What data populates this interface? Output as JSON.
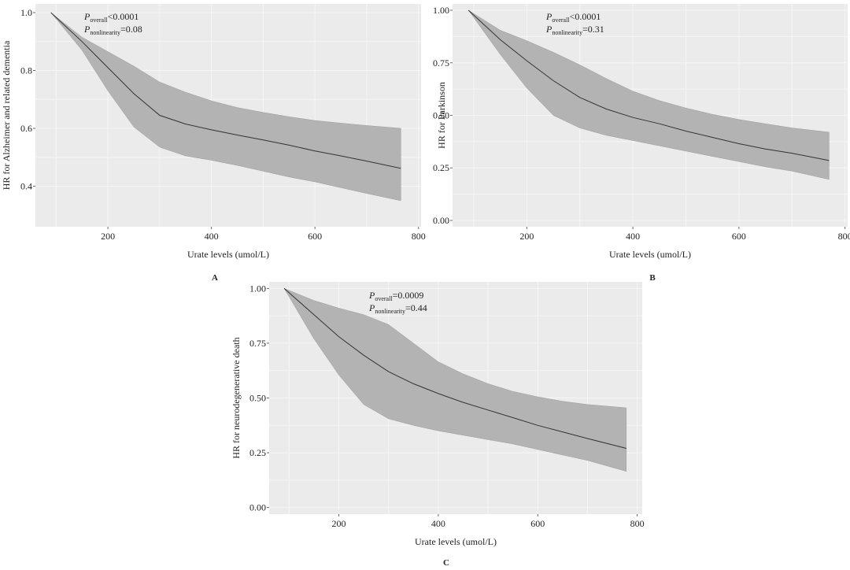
{
  "chart_data": [
    {
      "panel": "A",
      "type": "line",
      "xlabel": "Urate levels (umol/L)",
      "ylabel": "HR for Alzheimer and related dementia",
      "xlim": [
        60,
        805
      ],
      "ylim": [
        0.26,
        1.03
      ],
      "xticks": [
        200,
        400,
        600,
        800
      ],
      "xtick_labels": [
        "200",
        "400",
        "600",
        "800"
      ],
      "yticks": [
        0.4,
        0.6,
        0.8,
        1.0
      ],
      "ytick_labels": [
        "0.4",
        "0.6",
        "0.8",
        "1.0"
      ],
      "p_overall": "<0.0001",
      "p_nonlinearity": "=0.08",
      "series": [
        {
          "x": [
            90,
            150,
            200,
            250,
            300,
            350,
            400,
            450,
            500,
            550,
            600,
            650,
            700,
            766
          ],
          "y": [
            1.0,
            0.9,
            0.81,
            0.72,
            0.645,
            0.615,
            0.595,
            0.577,
            0.56,
            0.542,
            0.522,
            0.505,
            0.487,
            0.462
          ],
          "lower": [
            1.0,
            0.87,
            0.73,
            0.605,
            0.535,
            0.505,
            0.49,
            0.472,
            0.452,
            0.432,
            0.415,
            0.395,
            0.375,
            0.35
          ],
          "upper": [
            1.0,
            0.915,
            0.865,
            0.815,
            0.76,
            0.725,
            0.695,
            0.672,
            0.655,
            0.64,
            0.627,
            0.618,
            0.61,
            0.6
          ]
        }
      ]
    },
    {
      "panel": "B",
      "type": "line",
      "xlabel": "Urate levels (umol/L)",
      "ylabel": "HR for Parkinson",
      "xlim": [
        60,
        805
      ],
      "ylim": [
        -0.03,
        1.03
      ],
      "xticks": [
        200,
        400,
        600,
        800
      ],
      "xtick_labels": [
        "200",
        "400",
        "600",
        "800"
      ],
      "yticks": [
        0.0,
        0.25,
        0.5,
        0.75,
        1.0
      ],
      "ytick_labels": [
        "0.00",
        "0.25",
        "0.50",
        "0.75",
        "1.00"
      ],
      "p_overall": "<0.0001",
      "p_nonlinearity": "=0.31",
      "series": [
        {
          "x": [
            90,
            150,
            200,
            250,
            300,
            350,
            400,
            450,
            500,
            550,
            600,
            650,
            700,
            770
          ],
          "y": [
            1.0,
            0.86,
            0.76,
            0.665,
            0.585,
            0.53,
            0.49,
            0.46,
            0.425,
            0.395,
            0.365,
            0.34,
            0.32,
            0.285
          ],
          "lower": [
            1.0,
            0.79,
            0.63,
            0.5,
            0.44,
            0.405,
            0.38,
            0.355,
            0.33,
            0.305,
            0.28,
            0.255,
            0.235,
            0.195
          ],
          "upper": [
            1.0,
            0.905,
            0.855,
            0.8,
            0.74,
            0.675,
            0.615,
            0.57,
            0.535,
            0.505,
            0.48,
            0.46,
            0.44,
            0.42
          ]
        }
      ]
    },
    {
      "panel": "C",
      "type": "line",
      "xlabel": "Urate levels (umol/L)",
      "ylabel": "HR for neurodegenerative death",
      "xlim": [
        60,
        810
      ],
      "ylim": [
        -0.03,
        1.03
      ],
      "xticks": [
        200,
        400,
        600,
        800
      ],
      "xtick_labels": [
        "200",
        "400",
        "600",
        "800"
      ],
      "yticks": [
        0.0,
        0.25,
        0.5,
        0.75,
        1.0
      ],
      "ytick_labels": [
        "0.00",
        "0.25",
        "0.50",
        "0.75",
        "1.00"
      ],
      "p_overall": "=0.0009",
      "p_nonlinearity": "=0.44",
      "series": [
        {
          "x": [
            90,
            150,
            200,
            250,
            300,
            350,
            400,
            450,
            500,
            550,
            600,
            650,
            700,
            778
          ],
          "y": [
            1.0,
            0.88,
            0.78,
            0.695,
            0.62,
            0.565,
            0.52,
            0.48,
            0.445,
            0.41,
            0.375,
            0.345,
            0.315,
            0.27
          ],
          "lower": [
            1.0,
            0.77,
            0.605,
            0.47,
            0.405,
            0.375,
            0.35,
            0.33,
            0.31,
            0.29,
            0.265,
            0.24,
            0.215,
            0.165
          ],
          "upper": [
            1.0,
            0.945,
            0.91,
            0.88,
            0.835,
            0.75,
            0.665,
            0.61,
            0.565,
            0.53,
            0.505,
            0.485,
            0.47,
            0.455
          ]
        }
      ]
    }
  ],
  "panel_letters": [
    "A",
    "B",
    "C"
  ],
  "p_labels": {
    "p": "P",
    "overall_sub": "overall",
    "nonlinearity_sub": "nonlinearity"
  },
  "colors": {
    "panel_bg": "#ebebeb",
    "grid": "#f6f6f6",
    "ci_band": "#b3b3b3",
    "line": "#333333",
    "text": "#222222"
  }
}
